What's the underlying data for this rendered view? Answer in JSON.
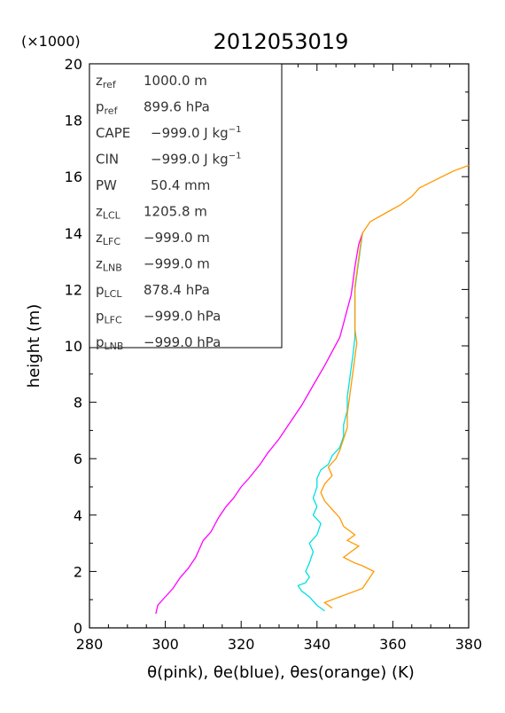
{
  "chart_data": {
    "type": "line",
    "title": "2012053019",
    "xlabel": "θ(pink), θe(blue), θes(orange)   (K)",
    "ylabel": "height (m)",
    "y_multiplier_label": "(×1000)",
    "xlim": [
      280,
      380
    ],
    "ylim": [
      0,
      20
    ],
    "x_ticks": [
      "280",
      "300",
      "320",
      "340",
      "360",
      "380"
    ],
    "y_ticks": [
      "0",
      "2",
      "4",
      "6",
      "8",
      "10",
      "12",
      "14",
      "16",
      "18",
      "20"
    ],
    "series": [
      {
        "color": "#ff00ff",
        "points": [
          [
            297.5,
            0.5
          ],
          [
            298,
            0.8
          ],
          [
            300,
            1.1
          ],
          [
            302,
            1.4
          ],
          [
            304,
            1.8
          ],
          [
            306,
            2.1
          ],
          [
            308,
            2.5
          ],
          [
            309,
            2.8
          ],
          [
            310,
            3.1
          ],
          [
            312,
            3.4
          ],
          [
            314,
            3.9
          ],
          [
            316,
            4.3
          ],
          [
            318,
            4.6
          ],
          [
            320,
            5.0
          ],
          [
            322,
            5.3
          ],
          [
            325,
            5.8
          ],
          [
            327,
            6.2
          ],
          [
            330,
            6.7
          ],
          [
            333,
            7.3
          ],
          [
            336,
            7.9
          ],
          [
            339,
            8.6
          ],
          [
            342,
            9.3
          ],
          [
            344,
            9.8
          ],
          [
            346,
            10.3
          ],
          [
            347,
            10.8
          ],
          [
            348,
            11.3
          ],
          [
            349,
            11.8
          ],
          [
            349.5,
            12.3
          ],
          [
            350,
            12.8
          ],
          [
            350.5,
            13.2
          ],
          [
            351,
            13.6
          ],
          [
            352,
            14.0
          ]
        ]
      },
      {
        "color": "#00e0e0",
        "points": [
          [
            342,
            0.6
          ],
          [
            340,
            0.8
          ],
          [
            338,
            1.1
          ],
          [
            336,
            1.3
          ],
          [
            335,
            1.5
          ],
          [
            337,
            1.6
          ],
          [
            338,
            1.8
          ],
          [
            337,
            2.0
          ],
          [
            338,
            2.3
          ],
          [
            339,
            2.7
          ],
          [
            338,
            3.0
          ],
          [
            340,
            3.3
          ],
          [
            341,
            3.7
          ],
          [
            339,
            4.0
          ],
          [
            340,
            4.3
          ],
          [
            339,
            4.6
          ],
          [
            340,
            5.0
          ],
          [
            340,
            5.3
          ],
          [
            341,
            5.6
          ],
          [
            343,
            5.8
          ],
          [
            344,
            6.1
          ],
          [
            346,
            6.4
          ],
          [
            347,
            6.8
          ],
          [
            347,
            7.2
          ],
          [
            348,
            7.7
          ],
          [
            348,
            8.2
          ],
          [
            348.5,
            8.7
          ],
          [
            349,
            9.2
          ],
          [
            349.5,
            9.7
          ],
          [
            350,
            10.3
          ],
          [
            350,
            10.8
          ],
          [
            350,
            11.4
          ],
          [
            350,
            12.0
          ],
          [
            350.5,
            12.5
          ],
          [
            351,
            13.0
          ],
          [
            351.5,
            13.5
          ],
          [
            352,
            14.0
          ]
        ]
      },
      {
        "color": "#ff9900",
        "points": [
          [
            344,
            0.7
          ],
          [
            342,
            0.9
          ],
          [
            346,
            1.1
          ],
          [
            348,
            1.2
          ],
          [
            350,
            1.3
          ],
          [
            352,
            1.4
          ],
          [
            353,
            1.6
          ],
          [
            354,
            1.8
          ],
          [
            355,
            2.0
          ],
          [
            352,
            2.2
          ],
          [
            350,
            2.3
          ],
          [
            347,
            2.5
          ],
          [
            349,
            2.7
          ],
          [
            351,
            2.9
          ],
          [
            348,
            3.1
          ],
          [
            350,
            3.3
          ],
          [
            347,
            3.6
          ],
          [
            346,
            3.9
          ],
          [
            344,
            4.2
          ],
          [
            342,
            4.5
          ],
          [
            341,
            4.8
          ],
          [
            342,
            5.1
          ],
          [
            344,
            5.4
          ],
          [
            343,
            5.7
          ],
          [
            345,
            6.0
          ],
          [
            346,
            6.3
          ],
          [
            347,
            6.7
          ],
          [
            348,
            7.1
          ],
          [
            348,
            7.6
          ],
          [
            348.5,
            8.1
          ],
          [
            349,
            8.6
          ],
          [
            349.5,
            9.1
          ],
          [
            350,
            9.6
          ],
          [
            350.5,
            10.1
          ],
          [
            350,
            10.6
          ],
          [
            350,
            11.1
          ],
          [
            350,
            11.6
          ],
          [
            350,
            12.1
          ],
          [
            350.5,
            12.6
          ],
          [
            351,
            13.1
          ],
          [
            351.5,
            13.6
          ],
          [
            352,
            14.0
          ],
          [
            354,
            14.4
          ],
          [
            358,
            14.7
          ],
          [
            362,
            15.0
          ],
          [
            365,
            15.3
          ],
          [
            367,
            15.6
          ],
          [
            370,
            15.8
          ],
          [
            373,
            16.0
          ],
          [
            376,
            16.2
          ],
          [
            380,
            16.4
          ]
        ]
      }
    ],
    "legend": "none",
    "grid": false
  },
  "info_box": {
    "rows": [
      {
        "name": "z",
        "sub": "ref",
        "value": "1000.0 m"
      },
      {
        "name": "p",
        "sub": "ref",
        "value": "899.6 hPa"
      },
      {
        "name": "CAPE",
        "sub": "",
        "value": "−999.0 J kg",
        "sup": "−1"
      },
      {
        "name": "CIN",
        "sub": "",
        "value": "−999.0 J kg",
        "sup": "−1"
      },
      {
        "name": "PW",
        "sub": "",
        "value": "50.4 mm"
      },
      {
        "name": "z",
        "sub": "LCL",
        "value": "1205.8 m"
      },
      {
        "name": "z",
        "sub": "LFC",
        "value": "−999.0 m"
      },
      {
        "name": "z",
        "sub": "LNB",
        "value": "−999.0 m"
      },
      {
        "name": "p",
        "sub": "LCL",
        "value": "878.4 hPa"
      },
      {
        "name": "p",
        "sub": "LFC",
        "value": "−999.0 hPa"
      },
      {
        "name": "p",
        "sub": "LNB",
        "value": "−999.0 hPa"
      }
    ]
  }
}
